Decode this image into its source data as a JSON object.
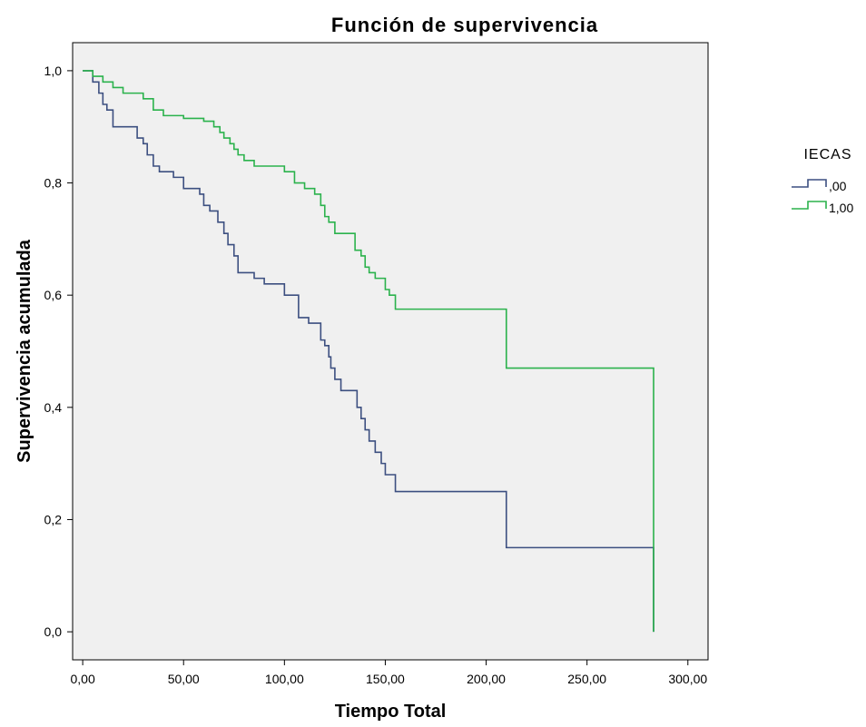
{
  "chart_data": {
    "type": "line",
    "step": true,
    "title": "Función de supervivencia",
    "xlabel": "Tiempo Total",
    "ylabel": "Supervivencia acumulada",
    "xlim": [
      -5,
      310
    ],
    "ylim": [
      -0.05,
      1.05
    ],
    "xticks": [
      0,
      50,
      100,
      150,
      200,
      250,
      300
    ],
    "xtick_labels": [
      "0,00",
      "50,00",
      "100,00",
      "150,00",
      "200,00",
      "250,00",
      "300,00"
    ],
    "yticks": [
      0,
      0.2,
      0.4,
      0.6,
      0.8,
      1.0
    ],
    "ytick_labels": [
      "0,0",
      "0,2",
      "0,4",
      "0,6",
      "0,8",
      "1,0"
    ],
    "grid": false,
    "background": "#f0f0f0",
    "legend": {
      "title": "IECAS",
      "placement": "right"
    },
    "series": [
      {
        "name": ",00",
        "color": "#3c4f80",
        "x": [
          0,
          5,
          8,
          10,
          12,
          15,
          20,
          27,
          30,
          32,
          35,
          38,
          45,
          50,
          58,
          60,
          63,
          67,
          70,
          72,
          75,
          77,
          80,
          85,
          90,
          100,
          107,
          112,
          118,
          120,
          122,
          123,
          125,
          128,
          130,
          136,
          138,
          140,
          142,
          145,
          148,
          150,
          155,
          210,
          283,
          283
        ],
        "y": [
          1.0,
          0.98,
          0.96,
          0.94,
          0.93,
          0.9,
          0.9,
          0.88,
          0.87,
          0.85,
          0.83,
          0.82,
          0.81,
          0.79,
          0.78,
          0.76,
          0.75,
          0.73,
          0.71,
          0.69,
          0.67,
          0.64,
          0.64,
          0.63,
          0.62,
          0.6,
          0.56,
          0.55,
          0.52,
          0.51,
          0.49,
          0.47,
          0.45,
          0.43,
          0.43,
          0.4,
          0.38,
          0.36,
          0.34,
          0.32,
          0.3,
          0.28,
          0.25,
          0.15,
          0.15,
          0.0
        ]
      },
      {
        "name": "1,00",
        "color": "#2bb24c",
        "x": [
          0,
          5,
          10,
          15,
          20,
          30,
          35,
          40,
          50,
          60,
          65,
          68,
          70,
          73,
          75,
          77,
          80,
          85,
          90,
          100,
          105,
          110,
          115,
          118,
          120,
          122,
          125,
          130,
          135,
          138,
          140,
          142,
          145,
          150,
          152,
          155,
          210,
          283,
          283
        ],
        "y": [
          1.0,
          0.99,
          0.98,
          0.97,
          0.96,
          0.95,
          0.93,
          0.92,
          0.915,
          0.91,
          0.9,
          0.89,
          0.88,
          0.87,
          0.86,
          0.85,
          0.84,
          0.83,
          0.83,
          0.82,
          0.8,
          0.79,
          0.78,
          0.76,
          0.74,
          0.73,
          0.71,
          0.71,
          0.68,
          0.67,
          0.65,
          0.64,
          0.63,
          0.61,
          0.6,
          0.575,
          0.47,
          0.47,
          0.0
        ]
      }
    ]
  }
}
